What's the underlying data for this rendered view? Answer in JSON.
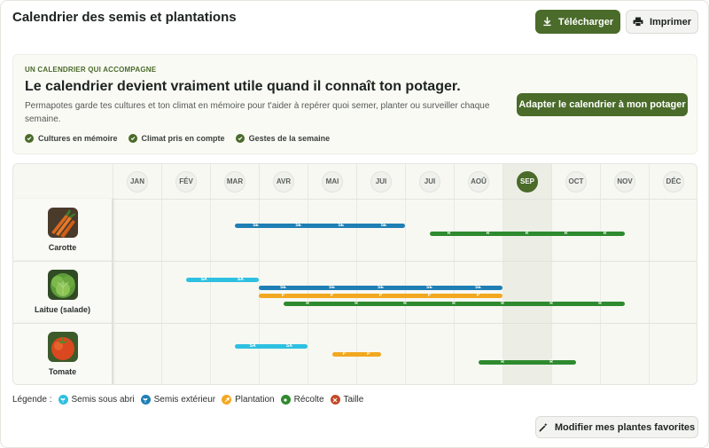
{
  "header": {
    "title": "Calendrier des semis et plantations",
    "download_label": "Télécharger",
    "print_label": "Imprimer"
  },
  "banner": {
    "eyebrow": "UN CALENDRIER QUI ACCOMPAGNE",
    "headline": "Le calendrier devient vraiment utile quand il connaît ton potager.",
    "description": "Permapotes garde tes cultures et ton climat en mémoire pour t'aider à repérer quoi semer, planter ou surveiller chaque semaine.",
    "features": [
      "Cultures en mémoire",
      "Climat pris en compte",
      "Gestes de la semaine"
    ],
    "adapt_label": "Adapter le calendrier à mon potager"
  },
  "calendar": {
    "months": [
      "JAN",
      "FÉV",
      "MAR",
      "AVR",
      "MAI",
      "JUI",
      "JUI",
      "AOÛ",
      "SEP",
      "OCT",
      "NOV",
      "DÉC"
    ],
    "current_month_index": 8,
    "plants": [
      {
        "name": "Carotte",
        "image": "carrot-photo",
        "bars": [
          {
            "type": "SE",
            "start": 2.5,
            "end": 6.0,
            "color": "#1f7fb5",
            "labels": [
              "SE",
              "SE",
              "SE",
              "SE"
            ]
          },
          {
            "type": "R",
            "start": 6.5,
            "end": 10.5,
            "color": "#2e8a2e",
            "labels": [
              "R",
              "R",
              "R",
              "R",
              "R"
            ]
          }
        ]
      },
      {
        "name": "Laitue (salade)",
        "image": "lettuce-photo",
        "bars": [
          {
            "type": "SA",
            "start": 1.5,
            "end": 3.0,
            "color": "#2ec0e0",
            "labels": [
              "SA",
              "SA"
            ]
          },
          {
            "type": "SE",
            "start": 3.0,
            "end": 8.0,
            "color": "#1f7fb5",
            "labels": [
              "SE",
              "SE",
              "SE",
              "SE",
              "SE"
            ]
          },
          {
            "type": "P",
            "start": 3.0,
            "end": 8.0,
            "color": "#f2a820",
            "labels": [
              "P",
              "P",
              "P",
              "P",
              "P"
            ]
          },
          {
            "type": "R",
            "start": 3.5,
            "end": 10.5,
            "color": "#2e8a2e",
            "labels": [
              "R",
              "R",
              "R",
              "R",
              "R",
              "R",
              "R"
            ]
          }
        ]
      },
      {
        "name": "Tomate",
        "image": "tomato-photo",
        "bars": [
          {
            "type": "SA",
            "start": 2.5,
            "end": 4.0,
            "color": "#2ec0e0",
            "labels": [
              "SA",
              "SA"
            ]
          },
          {
            "type": "P",
            "start": 4.5,
            "end": 5.5,
            "color": "#f2a820",
            "labels": [
              "P",
              "P"
            ]
          },
          {
            "type": "R",
            "start": 7.5,
            "end": 9.5,
            "color": "#2e8a2e",
            "labels": [
              "R",
              "R"
            ]
          }
        ]
      }
    ]
  },
  "legend": {
    "label": "Légende :",
    "items": [
      {
        "label": "Semis sous abri",
        "color": "#2ec0e0",
        "icon": "seedling-icon"
      },
      {
        "label": "Semis extérieur",
        "color": "#1f7fb5",
        "icon": "seedling-icon"
      },
      {
        "label": "Plantation",
        "color": "#f2a820",
        "icon": "trowel-icon"
      },
      {
        "label": "Récolte",
        "color": "#2e8a2e",
        "icon": "basket-icon"
      },
      {
        "label": "Taille",
        "color": "#c24a2a",
        "icon": "scissors-icon"
      }
    ]
  },
  "footer": {
    "favorites_label": "Modifier mes plantes favorites"
  }
}
